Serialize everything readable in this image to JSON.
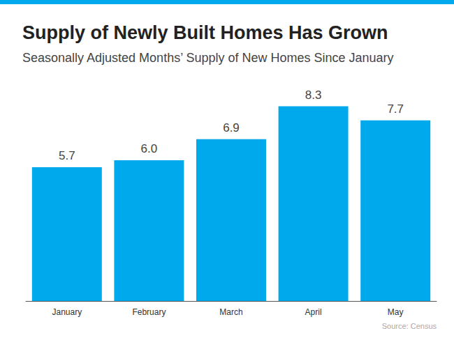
{
  "chart_data": {
    "type": "bar",
    "title": "Supply of Newly Built Homes Has Grown",
    "subtitle": "Seasonally Adjusted Months’ Supply of New Homes Since January",
    "categories": [
      "January",
      "February",
      "March",
      "April",
      "May"
    ],
    "values": [
      5.7,
      6.0,
      6.9,
      8.3,
      7.7
    ],
    "value_labels": [
      "5.7",
      "6.0",
      "6.9",
      "8.3",
      "7.7"
    ],
    "color": "#00a8ec",
    "ylim": [
      0,
      9
    ],
    "grid": false,
    "data_labels": true,
    "tick_labels": "x",
    "source": "Source: Census"
  }
}
